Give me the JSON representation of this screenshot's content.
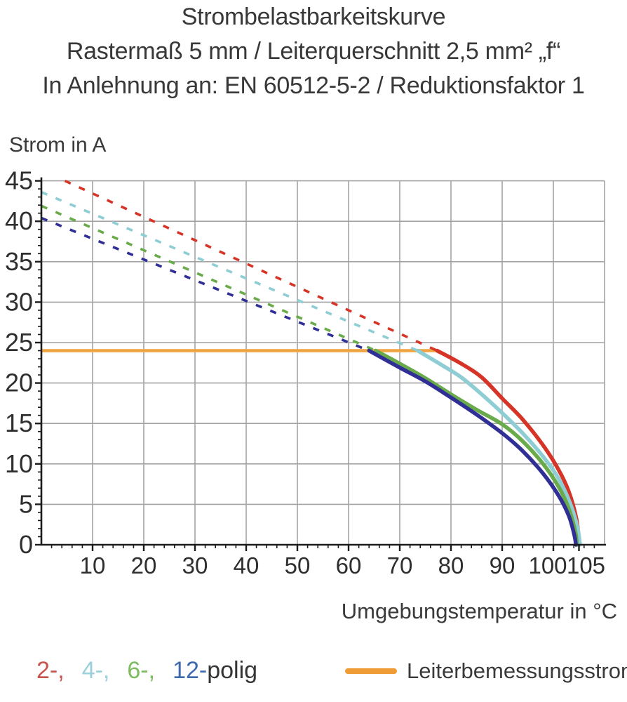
{
  "title": {
    "line1": "Strombelastbarkeitskurve",
    "line2": "Rastermaß 5 mm / Leiterquerschnitt 2,5 mm² „f“",
    "line3": "In Anlehnung an: EN 60512-5-2 / Reduktionsfaktor 1"
  },
  "chart_data": {
    "type": "line",
    "title": "Strombelastbarkeitskurve",
    "subtitle": "Rastermaß 5 mm / Leiterquerschnitt 2,5 mm² „f“",
    "standard_note": "In Anlehnung an: EN 60512-5-2 / Reduktionsfaktor 1",
    "xlabel": "Umgebungstemperatur in °C",
    "ylabel": "Strom in A",
    "xlim": [
      0,
      110
    ],
    "ylim": [
      0,
      45
    ],
    "x_tick_labels": [
      10,
      20,
      30,
      40,
      50,
      60,
      70,
      80,
      90,
      100,
      105
    ],
    "y_tick_labels": [
      0,
      5,
      10,
      15,
      20,
      25,
      30,
      35,
      40,
      45
    ],
    "x_grid_step": 10,
    "y_grid_step": 5,
    "x_minor_tick_step": 2,
    "y_minor_tick_step": 1,
    "grid": true,
    "legend_position": "bottom",
    "reference_line": {
      "name": "Leiterbemessungsstrom",
      "current_a": 24,
      "x_start": 0,
      "x_end": 77.3,
      "color": "#f0a441"
    },
    "series": [
      {
        "name": "2-polig",
        "color": "#d63427",
        "dashed_points": [
          [
            4.6,
            45
          ],
          [
            77.3,
            24
          ]
        ],
        "solid_points": [
          [
            77.3,
            24
          ],
          [
            82,
            22.4
          ],
          [
            86,
            20.7
          ],
          [
            90,
            18.1
          ],
          [
            94,
            15.5
          ],
          [
            98,
            12.3
          ],
          [
            101,
            9.3
          ],
          [
            103,
            6.6
          ],
          [
            104.5,
            3.2
          ],
          [
            105.1,
            0
          ]
        ]
      },
      {
        "name": "4-polig",
        "color": "#8ecdd4",
        "dashed_points": [
          [
            0,
            43.6
          ],
          [
            73.5,
            24
          ]
        ],
        "solid_points": [
          [
            73.5,
            24
          ],
          [
            78,
            22.3
          ],
          [
            82,
            20.7
          ],
          [
            86,
            18.6
          ],
          [
            90,
            16.3
          ],
          [
            94,
            13.8
          ],
          [
            98,
            10.9
          ],
          [
            101,
            8.2
          ],
          [
            103.3,
            5.1
          ],
          [
            104.7,
            2.2
          ],
          [
            105.2,
            0
          ]
        ]
      },
      {
        "name": "6-polig",
        "color": "#69aa4a",
        "dashed_points": [
          [
            0,
            41.9
          ],
          [
            65.3,
            24
          ]
        ],
        "solid_points": [
          [
            65.3,
            24
          ],
          [
            70,
            22.4
          ],
          [
            75,
            20.6
          ],
          [
            80,
            18.6
          ],
          [
            85,
            16.7
          ],
          [
            90,
            14.9
          ],
          [
            94,
            12.8
          ],
          [
            98,
            10.0
          ],
          [
            101,
            7.2
          ],
          [
            103,
            4.5
          ],
          [
            104.3,
            1.6
          ],
          [
            104.6,
            0
          ]
        ]
      },
      {
        "name": "12-polig",
        "color": "#2f2f96",
        "dashed_points": [
          [
            0,
            40.4
          ],
          [
            64,
            24
          ]
        ],
        "solid_points": [
          [
            64,
            24
          ],
          [
            70,
            21.9
          ],
          [
            75,
            20.2
          ],
          [
            80,
            18.2
          ],
          [
            85,
            16.1
          ],
          [
            90,
            13.8
          ],
          [
            94,
            11.6
          ],
          [
            98,
            8.8
          ],
          [
            101,
            6.1
          ],
          [
            103,
            3.6
          ],
          [
            104.1,
            1.2
          ],
          [
            104.4,
            0
          ]
        ]
      }
    ],
    "axis_color": "#1c1c1c",
    "grid_color": "#a3a3a3",
    "text_color": "#2e2e2e"
  },
  "legend": {
    "series_labels": [
      {
        "label": "2-,",
        "color": "#c7554d"
      },
      {
        "label": "4-,",
        "color": "#9bcfda"
      },
      {
        "label": "6-,",
        "color": "#7cbb60"
      },
      {
        "label": "12-",
        "color": "#3f69af"
      }
    ],
    "suffix": "polig",
    "reference": {
      "label": "Leiterbemessungsstrom",
      "color": "#ef9c36"
    }
  }
}
